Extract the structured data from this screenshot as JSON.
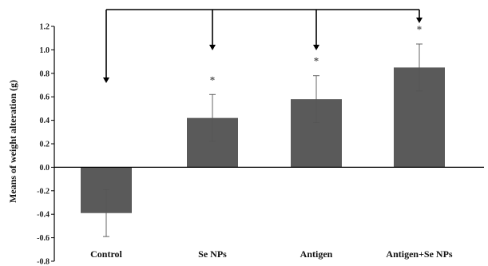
{
  "chart_data": {
    "type": "bar",
    "categories": [
      "Control",
      "Se NPs",
      "Antigen",
      "Antigen+Se NPs"
    ],
    "values": [
      -0.39,
      0.42,
      0.58,
      0.85
    ],
    "errors": [
      0.2,
      0.2,
      0.2,
      0.2
    ],
    "significance": [
      "",
      "*",
      "*",
      "*"
    ],
    "ylabel": "Means of weight alteration (g)",
    "ylim": [
      -0.8,
      1.2
    ],
    "yticks": [
      "1.2",
      "1.0",
      "0.8",
      "0.6",
      "0.4",
      "0.2",
      "0.0",
      "-0.2",
      "-0.4",
      "-0.6",
      "-0.8"
    ],
    "ytick_values": [
      1.2,
      1.0,
      0.8,
      0.6,
      0.4,
      0.2,
      0.0,
      -0.2,
      -0.4,
      -0.6,
      -0.8
    ],
    "grid": false,
    "bar_color": "#5a5a5a",
    "comparison_bracket": "Control vs. Se NPs, Antigen, Antigen+Se NPs"
  }
}
